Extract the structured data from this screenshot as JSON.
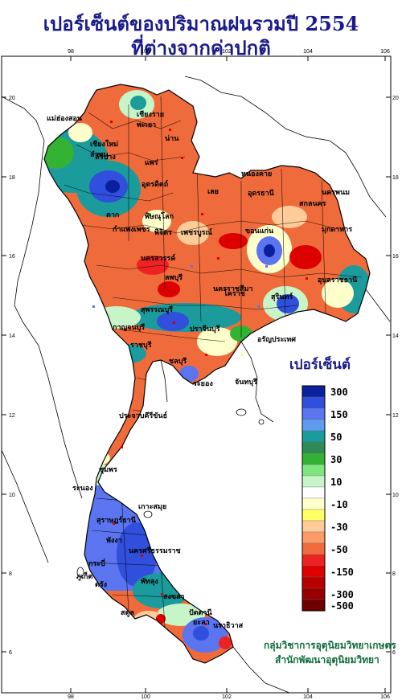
{
  "title": {
    "line1": "เปอร์เซ็นต์ของปริมาณฝนรวมปี  2554",
    "line2": "ที่ต่างจากค่าปกติ"
  },
  "axes": {
    "lon_ticks": [
      "98",
      "100",
      "102",
      "104",
      "106"
    ],
    "lat_ticks": [
      "20",
      "18",
      "16",
      "14",
      "12",
      "10",
      "8",
      "6"
    ]
  },
  "legend": {
    "title": "เปอร์เซ็นต์",
    "items": [
      {
        "label": "300",
        "color": "#0a1f9c"
      },
      {
        "label": "",
        "color": "#2f4fdc"
      },
      {
        "label": "150",
        "color": "#5b74f0"
      },
      {
        "label": "",
        "color": "#5f9cf0"
      },
      {
        "label": "50",
        "color": "#1b9b9b"
      },
      {
        "label": "",
        "color": "#2e8b57"
      },
      {
        "label": "30",
        "color": "#33b233"
      },
      {
        "label": "",
        "color": "#7ee67e"
      },
      {
        "label": "10",
        "color": "#c8f5c8"
      },
      {
        "label": "",
        "color": "#ffffff"
      },
      {
        "label": "-10",
        "color": "#ffffcc"
      },
      {
        "label": "",
        "color": "#ffff66"
      },
      {
        "label": "-30",
        "color": "#ffcc99"
      },
      {
        "label": "",
        "color": "#ff9966"
      },
      {
        "label": "-50",
        "color": "#f06b3b"
      },
      {
        "label": "",
        "color": "#ee2222"
      },
      {
        "label": "-150",
        "color": "#dd0000"
      },
      {
        "label": "",
        "color": "#b80000"
      },
      {
        "label": "-300",
        "color": "#960000"
      },
      {
        "label": "-500",
        "color": "#6e0000"
      }
    ]
  },
  "credit": {
    "line1": "กลุ่มวิชาการอุตุนิยมวิทยาเกษตร",
    "line2": "สำนักพัฒนาอุตุนิยมวิทยา"
  },
  "places": [
    {
      "name": "เชียงราย"
    },
    {
      "name": "แม่ฮ่องสอน"
    },
    {
      "name": "พะเยา"
    },
    {
      "name": "เชียงใหม่"
    },
    {
      "name": "ลำพูน"
    },
    {
      "name": "น่าน"
    },
    {
      "name": "ลำปาง"
    },
    {
      "name": "แพร่"
    },
    {
      "name": "อุตรดิตถ์"
    },
    {
      "name": "หนองคาย"
    },
    {
      "name": "อุดรธานี"
    },
    {
      "name": "นครพนม"
    },
    {
      "name": "เลย"
    },
    {
      "name": "สกลนคร"
    },
    {
      "name": "ตาก"
    },
    {
      "name": "พิษณุโลก"
    },
    {
      "name": "มุกดาหาร"
    },
    {
      "name": "กำแพงเพชร"
    },
    {
      "name": "พิจิตร"
    },
    {
      "name": "เพชรบูรณ์"
    },
    {
      "name": "ขอนแก่น"
    },
    {
      "name": "นครสวรรค์"
    },
    {
      "name": "อุบลราชธานี"
    },
    {
      "name": "ลพบุรี"
    },
    {
      "name": "นครราชสีมา"
    },
    {
      "name": "สุรินทร์"
    },
    {
      "name": "สุพรรณบุรี"
    },
    {
      "name": "ปราจีนบุรี"
    },
    {
      "name": "กาญจนบุรี"
    },
    {
      "name": "โคราช"
    },
    {
      "name": "ราชบุรี"
    },
    {
      "name": "อรัญประเทศ"
    },
    {
      "name": "ชลบุรี"
    },
    {
      "name": "ระยอง"
    },
    {
      "name": "จันทบุรี"
    },
    {
      "name": "ประจวบคีรีขันธ์"
    },
    {
      "name": "ชุมพร"
    },
    {
      "name": "ระนอง"
    },
    {
      "name": "เกาะสมุย"
    },
    {
      "name": "สุราษฎร์ธานี"
    },
    {
      "name": "นครศรีธรรมราช"
    },
    {
      "name": "พังงา"
    },
    {
      "name": "กระบี่"
    },
    {
      "name": "ภูเก็ต"
    },
    {
      "name": "ตรัง"
    },
    {
      "name": "พัทลุง"
    },
    {
      "name": "สตูล"
    },
    {
      "name": "สงขลา"
    },
    {
      "name": "ปัตตานี"
    },
    {
      "name": "ยะลา"
    },
    {
      "name": "นราธิวาส"
    }
  ]
}
